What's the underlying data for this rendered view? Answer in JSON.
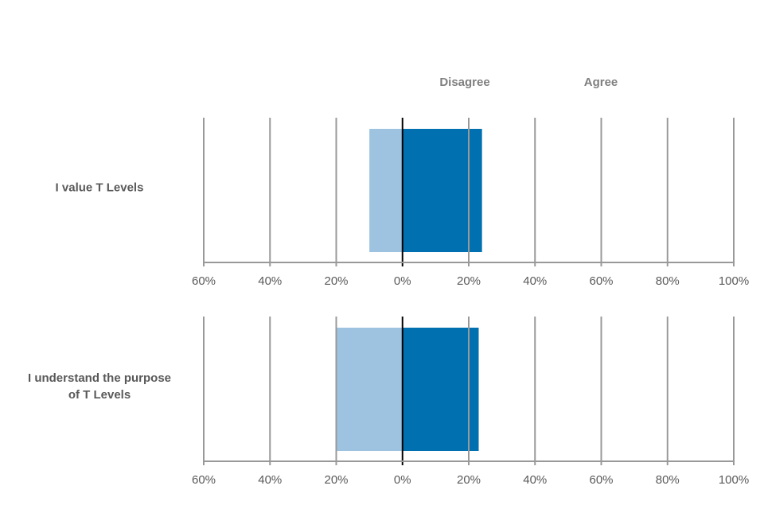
{
  "chart_data": [
    {
      "type": "diverging-bar",
      "categories": [
        "I value T Levels"
      ],
      "series": [
        {
          "name": "Disagree",
          "color": "#9dc3e0",
          "values": [
            -10
          ]
        },
        {
          "name": "Agree",
          "color": "#0070b0",
          "values": [
            24
          ]
        }
      ],
      "xlim": [
        -60,
        100
      ],
      "xticks": [
        {
          "value": -60,
          "label": "60%"
        },
        {
          "value": -40,
          "label": "40%"
        },
        {
          "value": -20,
          "label": "20%"
        },
        {
          "value": 0,
          "label": "0%"
        },
        {
          "value": 20,
          "label": "20%"
        },
        {
          "value": 40,
          "label": "40%"
        },
        {
          "value": 60,
          "label": "60%"
        },
        {
          "value": 80,
          "label": "80%"
        },
        {
          "value": 100,
          "label": "100%"
        }
      ],
      "grid": true
    },
    {
      "type": "diverging-bar",
      "categories": [
        "I understand the purpose of T Levels"
      ],
      "series": [
        {
          "color": "#9dc3e0",
          "values": [
            -20
          ]
        },
        {
          "color": "#0070b0",
          "values": [
            23
          ]
        }
      ],
      "xlim": [
        -60,
        100
      ],
      "xticks": [
        {
          "value": -60,
          "label": "60%"
        },
        {
          "value": -40,
          "label": "40%"
        },
        {
          "value": -20,
          "label": "20%"
        },
        {
          "value": 0,
          "label": "0%"
        },
        {
          "value": 20,
          "label": "20%"
        },
        {
          "value": 40,
          "label": "40%"
        },
        {
          "value": 60,
          "label": "60%"
        },
        {
          "value": 80,
          "label": "80%"
        },
        {
          "value": 100,
          "label": "100%"
        }
      ],
      "grid": true
    }
  ]
}
